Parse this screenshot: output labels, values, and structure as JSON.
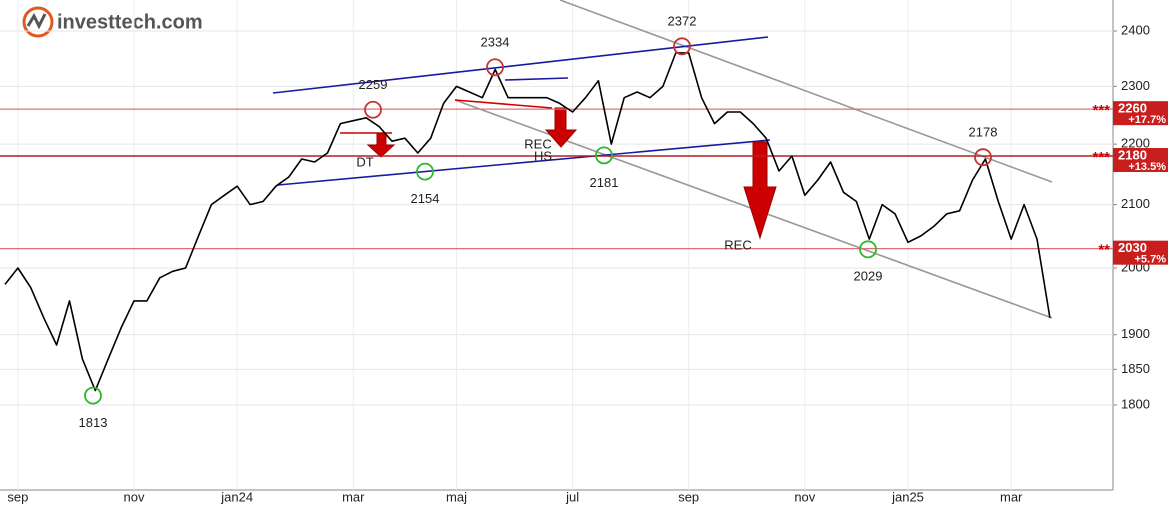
{
  "logo": "investtech.com",
  "chart_data": {
    "type": "line",
    "log_scale": true,
    "grid": true,
    "categories": [
      null,
      "sep",
      null,
      null,
      null,
      null,
      null,
      null,
      null,
      null,
      "nov",
      null,
      null,
      null,
      null,
      null,
      null,
      null,
      "jan24",
      null,
      null,
      null,
      null,
      null,
      null,
      null,
      null,
      "mar",
      null,
      null,
      null,
      null,
      null,
      null,
      null,
      "maj",
      null,
      null,
      null,
      null,
      null,
      null,
      null,
      null,
      "jul",
      null,
      null,
      null,
      null,
      null,
      null,
      null,
      null,
      "sep",
      null,
      null,
      null,
      null,
      null,
      null,
      null,
      null,
      "nov",
      null,
      null,
      null,
      null,
      null,
      null,
      null,
      "jan25",
      null,
      null,
      null,
      null,
      null,
      null,
      null,
      "mar",
      null,
      null,
      null
    ],
    "series": [
      {
        "color": "#000000",
        "values": [
          1975,
          2000,
          1970,
          1925,
          1885,
          1950,
          1865,
          1820,
          1865,
          1910,
          1950,
          1950,
          1985,
          1995,
          2000,
          2050,
          2100,
          2115,
          2130,
          2100,
          2105,
          2130,
          2145,
          2175,
          2170,
          2185,
          2235,
          2240,
          2245,
          2230,
          2205,
          2210,
          2185,
          2210,
          2270,
          2300,
          2290,
          2280,
          2330,
          2280,
          2280,
          2280,
          2280,
          2270,
          2255,
          2280,
          2310,
          2200,
          2280,
          2290,
          2280,
          2300,
          2360,
          2360,
          2280,
          2235,
          2255,
          2255,
          2235,
          2210,
          2155,
          2180,
          2115,
          2140,
          2170,
          2120,
          2105,
          2045,
          2100,
          2085,
          2040,
          2050,
          2065,
          2085,
          2090,
          2140,
          2175,
          2105,
          2045,
          2100,
          2045,
          1925
        ]
      }
    ],
    "ylim": [
      1686,
      2458
    ],
    "yticks": [
      1800,
      1850,
      1900,
      2000,
      2100,
      2200,
      2300,
      2400
    ],
    "levels": [
      {
        "value": 2260,
        "stars": "***",
        "change": "+17.7%"
      },
      {
        "value": 2180,
        "stars": "***",
        "change": "+13.5%"
      },
      {
        "value": 2030,
        "stars": "**",
        "change": "+5.7%"
      }
    ],
    "point_labels": [
      {
        "value": 1813,
        "color": "#2db82d"
      },
      {
        "value": 2259,
        "color": "#c83232"
      },
      {
        "value": 2334,
        "color": "#c83232"
      },
      {
        "value": 2154,
        "color": "#2db82d"
      },
      {
        "value": 2181,
        "color": "#2db82d"
      },
      {
        "value": 2372,
        "color": "#c83232"
      },
      {
        "value": 2029,
        "color": "#2db82d"
      },
      {
        "value": 2178,
        "color": "#c83232"
      }
    ],
    "signals": [
      "DT",
      "REC",
      "HS",
      "REC"
    ]
  }
}
